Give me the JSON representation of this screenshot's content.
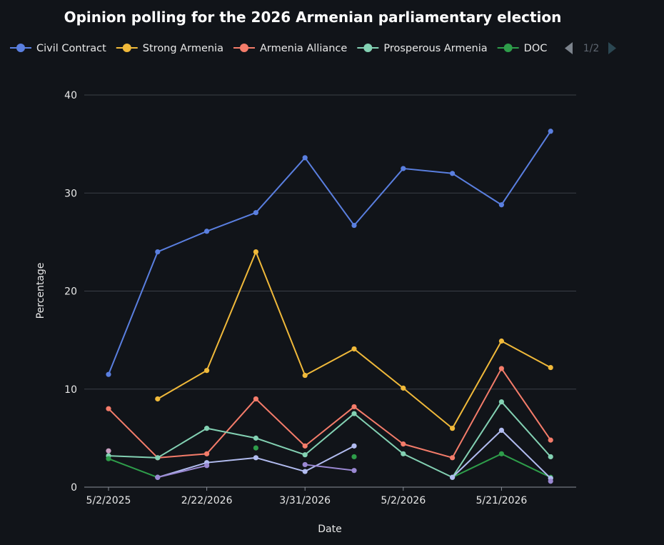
{
  "chart_data": {
    "type": "line",
    "title": "Opinion polling for the 2026 Armenian parliamentary election",
    "xlabel": "Date",
    "ylabel": "Percentage",
    "ylim": [
      0,
      40
    ],
    "yticks": [
      0,
      10,
      20,
      30,
      40
    ],
    "x": [
      "5/2/2025",
      "",
      "2/22/2026",
      "",
      "3/31/2026",
      "",
      "5/2/2026",
      "",
      "5/21/2026",
      ""
    ],
    "xtick_labels": [
      "5/2/2025",
      "2/22/2026",
      "3/31/2026",
      "5/2/2026",
      "5/21/2026"
    ],
    "grid": true,
    "legend": {
      "placement": "top",
      "page": "1/2"
    },
    "series": [
      {
        "name": "Civil Contract",
        "color": "#5a7fe0",
        "values": [
          11.5,
          24.0,
          26.1,
          28.0,
          33.6,
          26.7,
          32.5,
          32.0,
          28.8,
          36.3
        ]
      },
      {
        "name": "Strong Armenia",
        "color": "#f0b93a",
        "values": [
          null,
          9.0,
          11.9,
          24.0,
          11.4,
          14.1,
          10.1,
          6.0,
          14.9,
          12.2
        ]
      },
      {
        "name": "Armenia Alliance",
        "color": "#f47c6a",
        "values": [
          8.0,
          3.0,
          3.4,
          9.0,
          4.2,
          8.2,
          4.4,
          3.0,
          12.1,
          4.8
        ]
      },
      {
        "name": "Prosperous Armenia",
        "color": "#83d1b3",
        "values": [
          3.2,
          3.0,
          6.0,
          5.0,
          3.3,
          7.5,
          3.4,
          1.0,
          8.7,
          3.1
        ]
      },
      {
        "name": "DOC",
        "color": "#2e9d4a",
        "values": [
          2.9,
          1.0,
          null,
          4.0,
          null,
          3.1,
          null,
          1.0,
          3.4,
          1.0
        ]
      },
      {
        "name": "",
        "color": "#b2bcf0",
        "values": [
          null,
          1.0,
          2.5,
          3.0,
          1.6,
          4.2,
          null,
          1.0,
          5.8,
          0.9
        ]
      },
      {
        "name": "",
        "color": "#9a88d2",
        "values": [
          null,
          1.0,
          2.2,
          null,
          2.3,
          1.7,
          null,
          null,
          null,
          0.6
        ]
      },
      {
        "name": "",
        "color": "#c9a0c2",
        "values": [
          3.7,
          null,
          null,
          null,
          null,
          null,
          null,
          null,
          null,
          null
        ]
      }
    ]
  }
}
